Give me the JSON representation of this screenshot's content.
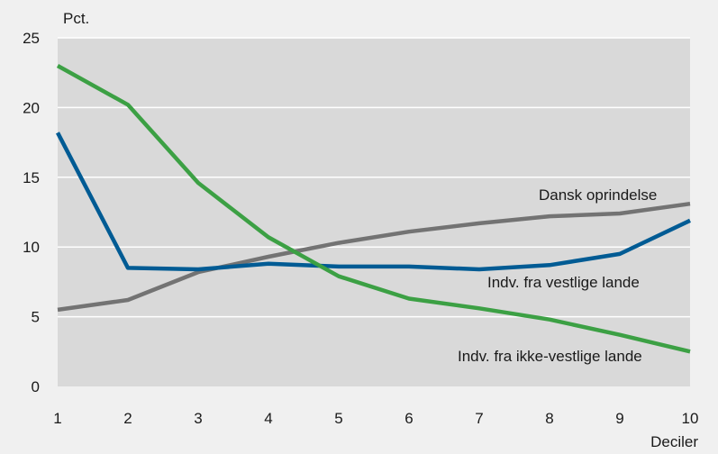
{
  "chart_data": {
    "type": "line",
    "ylabel": "Pct.",
    "xlabel": "Deciler",
    "x": [
      1,
      2,
      3,
      4,
      5,
      6,
      7,
      8,
      9,
      10
    ],
    "xticks": [
      "1",
      "2",
      "3",
      "4",
      "5",
      "6",
      "7",
      "8",
      "9",
      "10"
    ],
    "yticks": [
      "0",
      "5",
      "10",
      "15",
      "20",
      "25"
    ],
    "ylim": [
      0,
      25
    ],
    "xlim": [
      1,
      10
    ],
    "grid": true,
    "background": "#d9d9d9",
    "series": [
      {
        "name": "Dansk oprindelse",
        "color": "#737373",
        "values": [
          5.5,
          6.2,
          8.2,
          9.3,
          10.3,
          11.1,
          11.7,
          12.2,
          12.4,
          13.1
        ]
      },
      {
        "name": "Indv. fra vestlige lande",
        "color": "#005b94",
        "values": [
          18.2,
          8.5,
          8.4,
          8.8,
          8.6,
          8.6,
          8.4,
          8.7,
          9.5,
          11.9
        ]
      },
      {
        "name": "Indv. fra ikke-vestlige lande",
        "color": "#3ca044",
        "values": [
          23.0,
          20.2,
          14.6,
          10.7,
          7.9,
          6.3,
          5.6,
          4.8,
          3.7,
          2.5
        ]
      }
    ]
  }
}
